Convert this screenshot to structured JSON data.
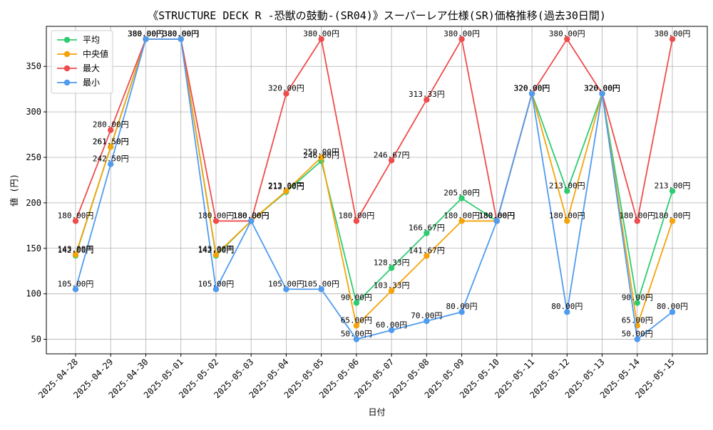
{
  "chart_data": {
    "type": "line",
    "title": "《STRUCTURE DECK R -恐獣の鼓動-(SR04)》スーパーレア仕様(SR)価格推移(過去30日間)",
    "xlabel": "日付",
    "ylabel": "値 (円)",
    "ylim": [
      34,
      394
    ],
    "yticks": [
      50,
      100,
      150,
      200,
      250,
      300,
      350
    ],
    "grid": true,
    "legend_position": "top-left",
    "label_suffix": "円",
    "categories": [
      "2025-04-28",
      "2025-04-29",
      "2025-04-30",
      "2025-05-01",
      "2025-05-02",
      "2025-05-03",
      "2025-05-04",
      "2025-05-05",
      "2025-05-06",
      "2025-05-07",
      "2025-05-08",
      "2025-05-09",
      "2025-05-10",
      "2025-05-11",
      "2025-05-12",
      "2025-05-13",
      "2025-05-14",
      "2025-05-15"
    ],
    "series": [
      {
        "name": "平均",
        "color": "#2ecc71",
        "values": [
          142,
          261.5,
          380,
          380,
          142,
          180,
          212,
          246,
          90,
          128.33,
          166.67,
          205,
          180,
          320,
          213,
          320,
          90,
          213
        ]
      },
      {
        "name": "中央値",
        "color": "#f5a30a",
        "values": [
          143,
          261.5,
          380,
          380,
          143,
          180,
          213,
          250,
          65,
          103.33,
          141.67,
          180,
          180,
          320,
          180,
          320,
          65,
          180
        ]
      },
      {
        "name": "最大",
        "color": "#ef4c4c",
        "values": [
          180,
          280,
          380,
          380,
          180,
          180,
          320,
          380,
          180,
          246.67,
          313.33,
          380,
          180,
          320,
          380,
          320,
          180,
          380
        ]
      },
      {
        "name": "最小",
        "color": "#4f9bef",
        "values": [
          105,
          242.5,
          380,
          380,
          105,
          180,
          105,
          105,
          50,
          60,
          70,
          80,
          180,
          320,
          80,
          320,
          50,
          80
        ]
      }
    ]
  }
}
